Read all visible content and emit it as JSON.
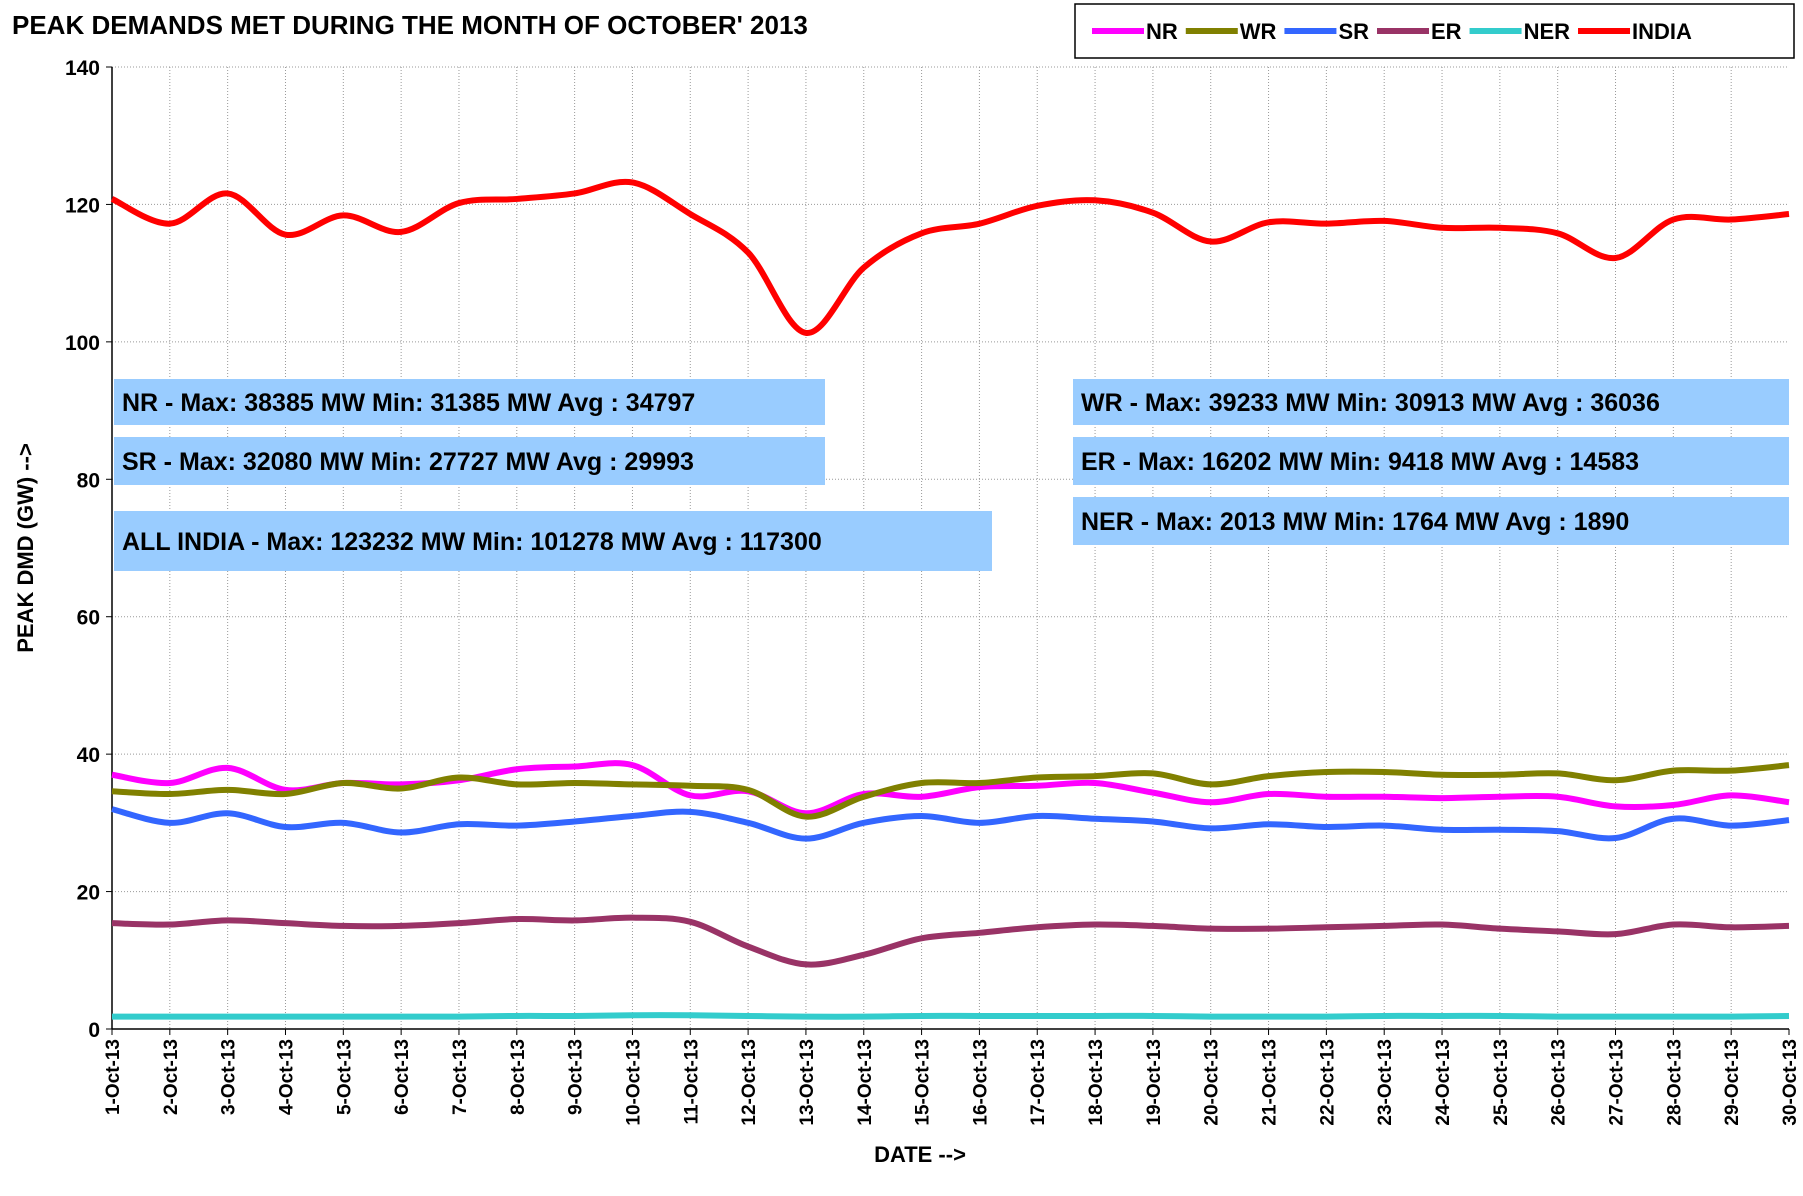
{
  "chart_data": {
    "type": "line",
    "title": "PEAK DEMANDS MET DURING THE MONTH OF OCTOBER' 2013",
    "x_label": "DATE -->",
    "y_label": "PEAK DMD (GW) -->",
    "categories": [
      "1-Oct-13",
      "2-Oct-13",
      "3-Oct-13",
      "4-Oct-13",
      "5-Oct-13",
      "6-Oct-13",
      "7-Oct-13",
      "8-Oct-13",
      "9-Oct-13",
      "10-Oct-13",
      "11-Oct-13",
      "12-Oct-13",
      "13-Oct-13",
      "14-Oct-13",
      "15-Oct-13",
      "16-Oct-13",
      "17-Oct-13",
      "18-Oct-13",
      "19-Oct-13",
      "20-Oct-13",
      "21-Oct-13",
      "22-Oct-13",
      "23-Oct-13",
      "24-Oct-13",
      "25-Oct-13",
      "26-Oct-13",
      "27-Oct-13",
      "28-Oct-13",
      "29-Oct-13",
      "30-Oct-13"
    ],
    "series": [
      {
        "name": "NR",
        "color": "#ff00ff",
        "values": [
          37,
          35.8,
          38,
          34.8,
          35.8,
          35.6,
          36.2,
          37.8,
          38.2,
          38.4,
          34,
          34.6,
          31.4,
          34.2,
          33.8,
          35.2,
          35.4,
          35.8,
          34.4,
          33,
          34.2,
          33.8,
          33.8,
          33.6,
          33.8,
          33.8,
          32.4,
          32.6,
          34,
          33
        ]
      },
      {
        "name": "WR",
        "color": "#808000",
        "values": [
          34.6,
          34.2,
          34.8,
          34.2,
          35.8,
          35,
          36.6,
          35.6,
          35.8,
          35.6,
          35.4,
          34.8,
          30.9,
          33.8,
          35.8,
          35.8,
          36.6,
          36.8,
          37.2,
          35.6,
          36.8,
          37.4,
          37.4,
          37,
          37,
          37.2,
          36.2,
          37.6,
          37.6,
          38.4
        ]
      },
      {
        "name": "SR",
        "color": "#3366ff",
        "values": [
          32,
          30,
          31.4,
          29.4,
          30,
          28.6,
          29.8,
          29.6,
          30.2,
          31,
          31.6,
          30,
          27.7,
          30,
          31,
          30,
          31,
          30.6,
          30.2,
          29.2,
          29.8,
          29.4,
          29.6,
          29,
          29,
          28.8,
          27.8,
          30.6,
          29.6,
          30.4
        ]
      },
      {
        "name": "ER",
        "color": "#993366",
        "values": [
          15.4,
          15.2,
          15.8,
          15.4,
          15,
          15,
          15.4,
          16,
          15.8,
          16.2,
          15.6,
          12,
          9.4,
          10.8,
          13.2,
          14,
          14.8,
          15.2,
          15,
          14.6,
          14.6,
          14.8,
          15,
          15.2,
          14.6,
          14.2,
          13.8,
          15.2,
          14.8,
          15
        ]
      },
      {
        "name": "NER",
        "color": "#33cccc",
        "values": [
          1.8,
          1.8,
          1.8,
          1.8,
          1.8,
          1.8,
          1.8,
          1.9,
          1.9,
          2.0,
          2.0,
          1.9,
          1.8,
          1.8,
          1.9,
          1.9,
          1.9,
          1.9,
          1.9,
          1.8,
          1.8,
          1.8,
          1.9,
          1.9,
          1.9,
          1.8,
          1.8,
          1.8,
          1.8,
          1.9
        ]
      },
      {
        "name": "INDIA",
        "color": "#ff0000",
        "values": [
          120.8,
          117.2,
          121.6,
          115.6,
          118.4,
          116,
          120.2,
          120.8,
          121.6,
          123.2,
          118.6,
          113,
          101.3,
          110.8,
          115.8,
          117.2,
          119.8,
          120.6,
          118.8,
          114.6,
          117.4,
          117.2,
          117.6,
          116.6,
          116.6,
          115.8,
          112.2,
          117.8,
          117.8,
          118.6
        ]
      }
    ],
    "ylim": [
      0,
      140
    ],
    "yticks": [
      0,
      20,
      40,
      60,
      80,
      100,
      120,
      140
    ],
    "grid": true,
    "legend": "top-right",
    "annotations": [
      "NR - Max: 38385 MW Min: 31385 MW Avg : 34797",
      "SR - Max: 32080 MW Min: 27727 MW Avg : 29993",
      "ALL INDIA - Max: 123232 MW Min: 101278 MW Avg : 117300",
      "WR - Max: 39233 MW Min: 30913 MW Avg : 36036",
      "ER - Max: 16202 MW Min: 9418 MW Avg : 14583",
      "NER - Max: 2013 MW Min: 1764 MW Avg : 1890"
    ],
    "annotation_color": "#99ccff"
  }
}
